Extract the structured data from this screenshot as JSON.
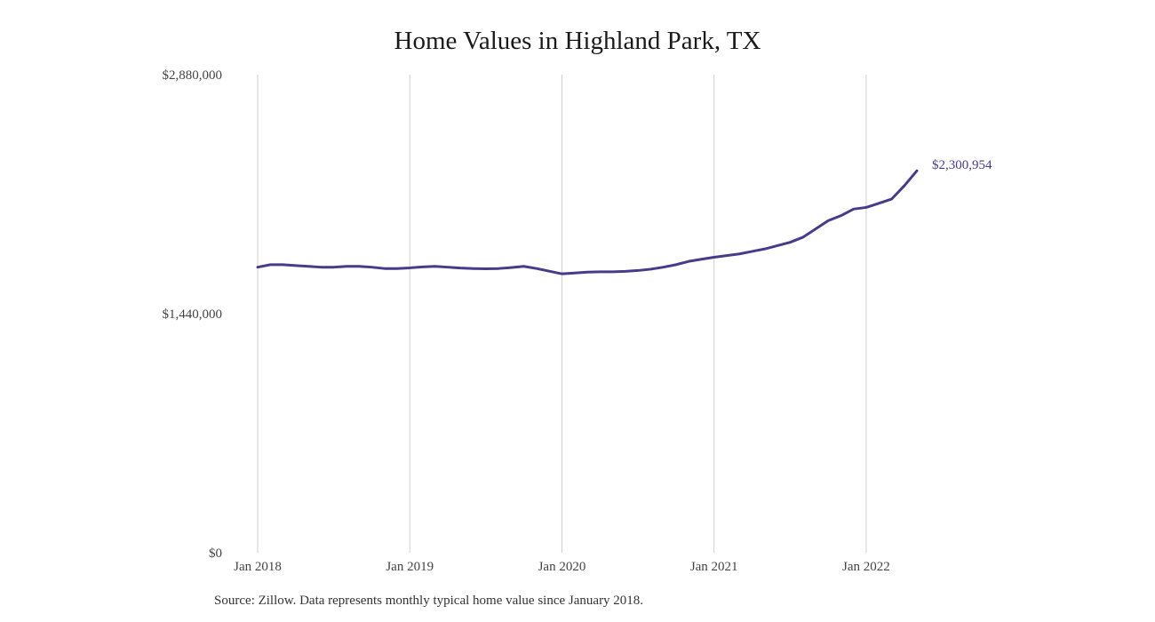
{
  "chart_data": {
    "type": "line",
    "title": "Home Values in Highland Park, TX",
    "xlabel": "",
    "ylabel": "",
    "ylim": [
      0,
      2880000
    ],
    "y_ticks": [
      {
        "value": 0,
        "label": "$0"
      },
      {
        "value": 1440000,
        "label": "$1,440,000"
      },
      {
        "value": 2880000,
        "label": "$2,880,000"
      }
    ],
    "x_ticks": [
      {
        "value": "2018-01",
        "label": "Jan 2018"
      },
      {
        "value": "2019-01",
        "label": "Jan 2019"
      },
      {
        "value": "2020-01",
        "label": "Jan 2020"
      },
      {
        "value": "2021-01",
        "label": "Jan 2021"
      },
      {
        "value": "2022-01",
        "label": "Jan 2022"
      }
    ],
    "xlim": [
      "2018-01",
      "2022-05"
    ],
    "grid": {
      "vertical": true,
      "horizontal": false
    },
    "line_color": "#4a3a8a",
    "end_label": "$2,300,954",
    "series": [
      {
        "x": [
          "2018-01",
          "2018-02",
          "2018-03",
          "2018-04",
          "2018-05",
          "2018-06",
          "2018-07",
          "2018-08",
          "2018-09",
          "2018-10",
          "2018-11",
          "2018-12",
          "2019-01",
          "2019-02",
          "2019-03",
          "2019-04",
          "2019-05",
          "2019-06",
          "2019-07",
          "2019-08",
          "2019-09",
          "2019-10",
          "2019-11",
          "2019-12",
          "2020-01",
          "2020-02",
          "2020-03",
          "2020-04",
          "2020-05",
          "2020-06",
          "2020-07",
          "2020-08",
          "2020-09",
          "2020-10",
          "2020-11",
          "2020-12",
          "2021-01",
          "2021-02",
          "2021-03",
          "2021-04",
          "2021-05",
          "2021-06",
          "2021-07",
          "2021-08",
          "2021-09",
          "2021-10",
          "2021-11",
          "2021-12",
          "2022-01",
          "2022-02",
          "2022-03",
          "2022-04",
          "2022-05"
        ],
        "values": [
          1720000,
          1735000,
          1735000,
          1730000,
          1725000,
          1720000,
          1720000,
          1725000,
          1725000,
          1720000,
          1712000,
          1712000,
          1716000,
          1722000,
          1725000,
          1720000,
          1715000,
          1712000,
          1710000,
          1712000,
          1718000,
          1725000,
          1712000,
          1696000,
          1680000,
          1685000,
          1690000,
          1692000,
          1692000,
          1695000,
          1700000,
          1708000,
          1720000,
          1735000,
          1755000,
          1768000,
          1780000,
          1790000,
          1800000,
          1815000,
          1830000,
          1850000,
          1870000,
          1900000,
          1950000,
          2000000,
          2030000,
          2070000,
          2080000,
          2105000,
          2130000,
          2210000,
          2300954
        ]
      }
    ]
  },
  "source_note": "Source: Zillow. Data represents monthly typical home value since January 2018."
}
